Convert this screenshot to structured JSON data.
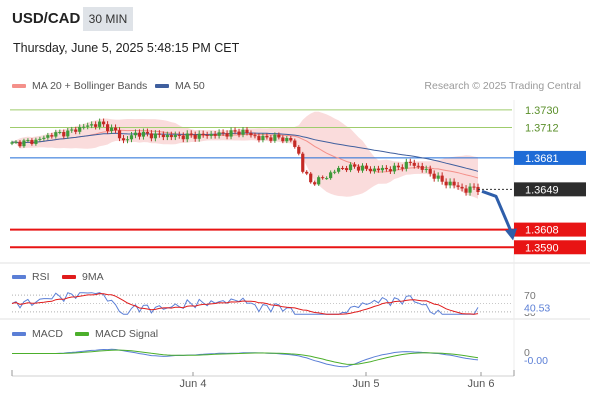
{
  "header": {
    "symbol": "USD/CAD",
    "interval": "30 MIN",
    "datetime": "Thursday, June 5, 2025 5:48:15 PM CET"
  },
  "legend": {
    "main": [
      {
        "label": "MA 20 + Bollinger Bands",
        "color": "#f4908a"
      },
      {
        "label": "MA 50",
        "color": "#3f5f9e"
      }
    ],
    "rsi": [
      {
        "label": "RSI",
        "color": "#5b7fd6"
      },
      {
        "label": "9MA",
        "color": "#e01c1c"
      }
    ],
    "macd": [
      {
        "label": "MACD",
        "color": "#5b7fd6"
      },
      {
        "label": "MACD Signal",
        "color": "#4caf2b"
      }
    ]
  },
  "copyright": "Research © 2025 Trading Central",
  "colors": {
    "bull": "#3f9a3a",
    "bear": "#c42a25",
    "resistance": "#9fcc6c",
    "pivot": "#1e6bd6",
    "support": "#e81414",
    "last_price_bg": "#2d2d2d",
    "arrow": "#2e5eaa",
    "bollinger_fill": "#f9d6d6"
  },
  "chart_data": [
    {
      "type": "candlestick",
      "x_labels": [
        "Jun 4",
        "Jun 5",
        "Jun 6"
      ],
      "ylim": [
        1.3575,
        1.374
      ],
      "levels": [
        {
          "label": "1.3730",
          "value": 1.373,
          "kind": "resistance"
        },
        {
          "label": "1.3712",
          "value": 1.3712,
          "kind": "resistance"
        },
        {
          "label": "1.3681",
          "value": 1.3681,
          "kind": "pivot"
        },
        {
          "label": "1.3608",
          "value": 1.3608,
          "kind": "support"
        },
        {
          "label": "1.3590",
          "value": 1.359,
          "kind": "support"
        }
      ],
      "last_price": {
        "label": "1.3649",
        "value": 1.3649
      },
      "forecast": {
        "from": 1.3647,
        "to": 1.3598
      }
    },
    {
      "type": "line",
      "name": "RSI",
      "reference_levels": [
        70,
        30
      ],
      "axis_labels": [
        "70",
        "30"
      ],
      "value_label": "40.53",
      "last_value": 40.53
    },
    {
      "type": "line",
      "name": "MACD",
      "axis_labels": [
        "0"
      ],
      "value_label": "-0.00",
      "last_value": -0.0001
    }
  ]
}
